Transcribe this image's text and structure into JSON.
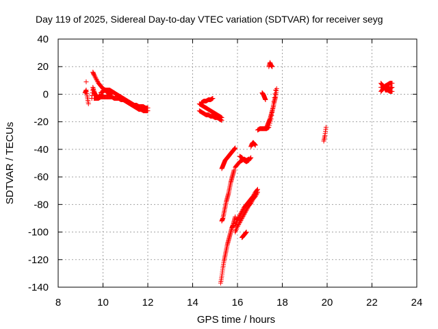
{
  "chart_data": {
    "type": "scatter",
    "title": "Day 119 of 2025, Sidereal Day-to-day VTEC variation (SDTVAR) for receiver seyg",
    "xlabel": "GPS time / hours",
    "ylabel": "SDTVAR / TECUs",
    "xlim": [
      8,
      24
    ],
    "ylim": [
      -140,
      40
    ],
    "xticks": [
      8,
      10,
      12,
      14,
      16,
      18,
      20,
      22,
      24
    ],
    "yticks": [
      -140,
      -120,
      -100,
      -80,
      -60,
      -40,
      -20,
      0,
      20,
      40
    ],
    "grid": true,
    "marker": "plus",
    "color": "#ff0000",
    "segments": [
      {
        "x": [
          9.2,
          9.25,
          9.3,
          9.35
        ],
        "y": [
          1,
          3,
          -2,
          -7
        ]
      },
      {
        "x": [
          9.25
        ],
        "y": [
          9
        ]
      },
      {
        "x": [
          9.5,
          9.55,
          9.6,
          9.65,
          9.7,
          9.75,
          9.8,
          9.85,
          9.9,
          9.95,
          10.0
        ],
        "y": [
          -3,
          5,
          2,
          0,
          -1,
          -2,
          -2,
          -1,
          -2,
          -1,
          -1
        ]
      },
      {
        "x": [
          9.55,
          9.6,
          9.7,
          9.8,
          9.9,
          10.0,
          10.1,
          10.2,
          10.3,
          10.4
        ],
        "y": [
          16,
          14,
          11,
          8,
          6,
          4,
          3,
          1,
          0,
          0
        ]
      },
      {
        "x": [
          9.6,
          9.7,
          9.8,
          9.9,
          10.0,
          10.1,
          10.2,
          10.3,
          10.4,
          10.5,
          10.6,
          10.7,
          10.8,
          10.9,
          11.0,
          11.1,
          11.2,
          11.3,
          11.4,
          11.5,
          11.6,
          11.7,
          11.8,
          11.9,
          12.0
        ],
        "y": [
          -3,
          -3,
          -3,
          -2,
          -2,
          -2,
          -2,
          -2,
          -2,
          -3,
          -3,
          -3,
          -4,
          -4,
          -5,
          -6,
          -7,
          -8,
          -9,
          -10,
          -11,
          -11,
          -12,
          -12,
          -12
        ]
      },
      {
        "x": [
          9.9,
          10.0,
          10.1,
          10.2,
          10.3,
          10.4,
          10.5,
          10.6,
          10.7,
          10.8,
          10.9,
          11.0,
          11.1,
          11.2,
          11.3,
          11.4,
          11.5,
          11.6,
          11.7,
          11.8,
          11.9,
          12.0
        ],
        "y": [
          1,
          2,
          3,
          3,
          3,
          2,
          1,
          0,
          -1,
          -2,
          -3,
          -4,
          -5,
          -6,
          -7,
          -8,
          -8,
          -9,
          -9,
          -9,
          -10,
          -10
        ]
      },
      {
        "x": [
          14.3,
          14.4,
          14.5,
          14.6,
          14.7,
          14.8,
          14.9,
          15.0,
          15.1,
          15.2,
          15.3
        ],
        "y": [
          -7,
          -8,
          -9,
          -10,
          -11,
          -12,
          -13,
          -14,
          -15,
          -16,
          -17
        ]
      },
      {
        "x": [
          14.3,
          14.4,
          14.5,
          14.6,
          14.7,
          14.8,
          14.9,
          15.0,
          15.1,
          15.2,
          15.3
        ],
        "y": [
          -12,
          -13,
          -14,
          -15,
          -15,
          -16,
          -16,
          -17,
          -17,
          -18,
          -19
        ]
      },
      {
        "x": [
          14.4,
          14.5,
          14.6,
          14.7,
          14.8,
          14.9
        ],
        "y": [
          -6,
          -5,
          -5,
          -4,
          -4,
          -3
        ]
      },
      {
        "x": [
          15.25,
          15.3,
          15.35,
          15.4,
          15.45,
          15.5,
          15.55,
          15.6,
          15.65,
          15.7,
          15.75,
          15.8,
          15.85,
          15.9
        ],
        "y": [
          -137,
          -132,
          -126,
          -121,
          -117,
          -113,
          -109,
          -106,
          -103,
          -100,
          -97,
          -95,
          -92,
          -89
        ]
      },
      {
        "x": [
          15.3,
          15.35,
          15.4,
          15.45,
          15.5,
          15.55,
          15.6,
          15.65,
          15.7,
          15.75,
          15.8,
          15.85
        ],
        "y": [
          -92,
          -90,
          -86,
          -82,
          -78,
          -75,
          -72,
          -68,
          -64,
          -61,
          -58,
          -55
        ]
      },
      {
        "x": [
          15.3,
          15.35,
          15.4,
          15.45,
          15.5,
          15.55,
          15.6,
          15.65,
          15.7,
          15.75,
          15.8,
          15.85,
          15.9
        ],
        "y": [
          -54,
          -52,
          -50,
          -48,
          -47,
          -46,
          -45,
          -44,
          -43,
          -42,
          -41,
          -40,
          -39
        ]
      },
      {
        "x": [
          15.9,
          16.0,
          16.1,
          16.2,
          16.3,
          16.4,
          16.5,
          16.6,
          16.7,
          16.8,
          16.9
        ],
        "y": [
          -95,
          -91,
          -88,
          -85,
          -82,
          -80,
          -78,
          -76,
          -74,
          -71,
          -69
        ]
      },
      {
        "x": [
          15.9,
          16.0,
          16.1,
          16.2,
          16.3,
          16.4,
          16.5,
          16.6,
          16.7,
          16.8,
          16.9
        ],
        "y": [
          -100,
          -96,
          -93,
          -90,
          -87,
          -84,
          -81,
          -79,
          -76,
          -74,
          -71
        ]
      },
      {
        "x": [
          16.2,
          16.25,
          16.3,
          16.35,
          16.4
        ],
        "y": [
          -104,
          -103,
          -102,
          -101,
          -100
        ]
      },
      {
        "x": [
          15.9,
          16.0,
          16.1,
          16.2,
          16.3,
          16.4,
          16.5
        ],
        "y": [
          -53,
          -51,
          -49,
          -48,
          -47,
          -48,
          -47
        ]
      },
      {
        "x": [
          16.1,
          16.2,
          16.3,
          16.4,
          16.5,
          16.6
        ],
        "y": [
          -45,
          -46,
          -48,
          -49,
          -48,
          -46
        ]
      },
      {
        "x": [
          16.6,
          16.65,
          16.7,
          16.75,
          16.8
        ],
        "y": [
          -38,
          -36,
          -35,
          -36,
          -37
        ]
      },
      {
        "x": [
          16.9,
          17.0,
          17.1,
          17.2,
          17.3,
          17.4,
          17.5,
          17.6,
          17.7
        ],
        "y": [
          -26,
          -25,
          -25,
          -25,
          -25,
          -24,
          -18,
          -8,
          3
        ]
      },
      {
        "x": [
          17.3,
          17.35,
          17.4,
          17.45,
          17.5,
          17.55,
          17.6,
          17.65,
          17.7,
          17.75
        ],
        "y": [
          -24,
          -22,
          -20,
          -18,
          -15,
          -12,
          -9,
          -5,
          -2,
          4
        ]
      },
      {
        "x": [
          17.4,
          17.45,
          17.5,
          17.55
        ],
        "y": [
          20,
          23,
          21,
          20
        ]
      },
      {
        "x": [
          17.1,
          17.15,
          17.2,
          17.25
        ],
        "y": [
          1,
          0,
          -2,
          -4
        ]
      },
      {
        "x": [
          19.85,
          19.9,
          19.95
        ],
        "y": [
          -34,
          -30,
          -24
        ]
      },
      {
        "x": [
          22.4,
          22.5,
          22.6,
          22.7,
          22.8,
          22.9
        ],
        "y": [
          2,
          4,
          6,
          7,
          8,
          8
        ]
      },
      {
        "x": [
          22.4,
          22.5,
          22.6,
          22.7,
          22.8,
          22.9
        ],
        "y": [
          5,
          5,
          6,
          5,
          4,
          5
        ]
      },
      {
        "x": [
          22.4,
          22.5,
          22.6,
          22.7,
          22.8,
          22.9
        ],
        "y": [
          8,
          6,
          3,
          3,
          2,
          2
        ]
      }
    ]
  }
}
